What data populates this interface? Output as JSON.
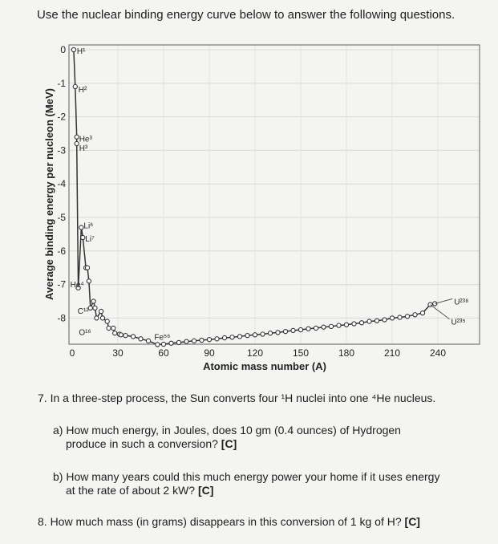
{
  "intro": "Use the nuclear binding energy curve below to answer the following questions.",
  "chart_data": {
    "type": "scatter",
    "xlabel": "Atomic mass number (A)",
    "ylabel": "Average binding energy per nucleon (MeV)",
    "xlim": [
      0,
      270
    ],
    "ylim": [
      -9,
      0
    ],
    "x_ticks": [
      "0",
      "30",
      "60",
      "90",
      "120",
      "150",
      "180",
      "210",
      "240"
    ],
    "y_ticks": [
      "0",
      "-1",
      "-2",
      "-3",
      "-4",
      "-5",
      "-6",
      "-7",
      "-8"
    ],
    "grid": true,
    "series": [
      {
        "x": [
          1,
          2,
          3,
          3,
          4,
          6,
          7,
          9,
          10,
          11,
          12,
          14,
          15,
          16,
          19,
          20,
          23,
          24,
          27,
          28,
          31,
          32,
          35,
          40,
          45,
          50,
          56,
          60,
          65,
          70,
          75,
          80,
          85,
          90,
          95,
          100,
          105,
          110,
          115,
          120,
          125,
          130,
          135,
          140,
          145,
          150,
          155,
          160,
          165,
          170,
          175,
          180,
          185,
          190,
          195,
          200,
          205,
          210,
          215,
          220,
          225,
          230,
          235,
          238
        ],
        "y": [
          0,
          -1.1,
          -2.6,
          -2.8,
          -7.1,
          -5.3,
          -5.6,
          -6.5,
          -6.5,
          -6.9,
          -7.7,
          -7.5,
          -7.7,
          -8.0,
          -7.8,
          -8.0,
          -8.1,
          -8.3,
          -8.3,
          -8.45,
          -8.48,
          -8.5,
          -8.52,
          -8.55,
          -8.62,
          -8.68,
          -8.79,
          -8.78,
          -8.75,
          -8.73,
          -8.7,
          -8.68,
          -8.66,
          -8.64,
          -8.62,
          -8.59,
          -8.57,
          -8.55,
          -8.52,
          -8.5,
          -8.48,
          -8.45,
          -8.43,
          -8.4,
          -8.37,
          -8.35,
          -8.32,
          -8.3,
          -8.27,
          -8.25,
          -8.22,
          -8.2,
          -8.17,
          -8.14,
          -8.1,
          -8.08,
          -8.05,
          -8.0,
          -7.98,
          -7.95,
          -7.9,
          -7.85,
          -7.6,
          -7.57
        ]
      }
    ],
    "annotations": [
      {
        "text": "H¹",
        "x": 1,
        "y": 0
      },
      {
        "text": "H²",
        "x": 2,
        "y": -1.1
      },
      {
        "text": "He³",
        "x": 3,
        "y": -2.6
      },
      {
        "text": "H³",
        "x": 3,
        "y": -2.8
      },
      {
        "text": "Li⁶",
        "x": 6,
        "y": -5.3
      },
      {
        "text": "Li⁷",
        "x": 7,
        "y": -5.6
      },
      {
        "text": "He⁴",
        "x": 4,
        "y": -7.1
      },
      {
        "text": "C¹²",
        "x": 12,
        "y": -7.7
      },
      {
        "text": "O¹⁶",
        "x": 16,
        "y": -8.0
      },
      {
        "text": "Fe⁵⁶",
        "x": 56,
        "y": -8.79
      },
      {
        "text": "U²³⁸",
        "x": 238,
        "y": -7.57
      },
      {
        "text": "U²³⁵",
        "x": 235,
        "y": -7.6
      }
    ]
  },
  "questions": {
    "q7": "7. In a three-step process, the Sun converts four ¹H nuclei into one ⁴He nucleus.",
    "q7a_line1": "a) How much energy, in Joules, does 10 gm (0.4 ounces) of Hydrogen",
    "q7a_line2": "produce in such a conversion?",
    "q7b_line1": "b) How many years could this much energy power your home if it uses energy",
    "q7b_line2": "at the rate of about 2 kW?",
    "q8": "8. How much mass (in grams) disappears in this conversion of 1 kg of H?",
    "tag": "[C]"
  }
}
